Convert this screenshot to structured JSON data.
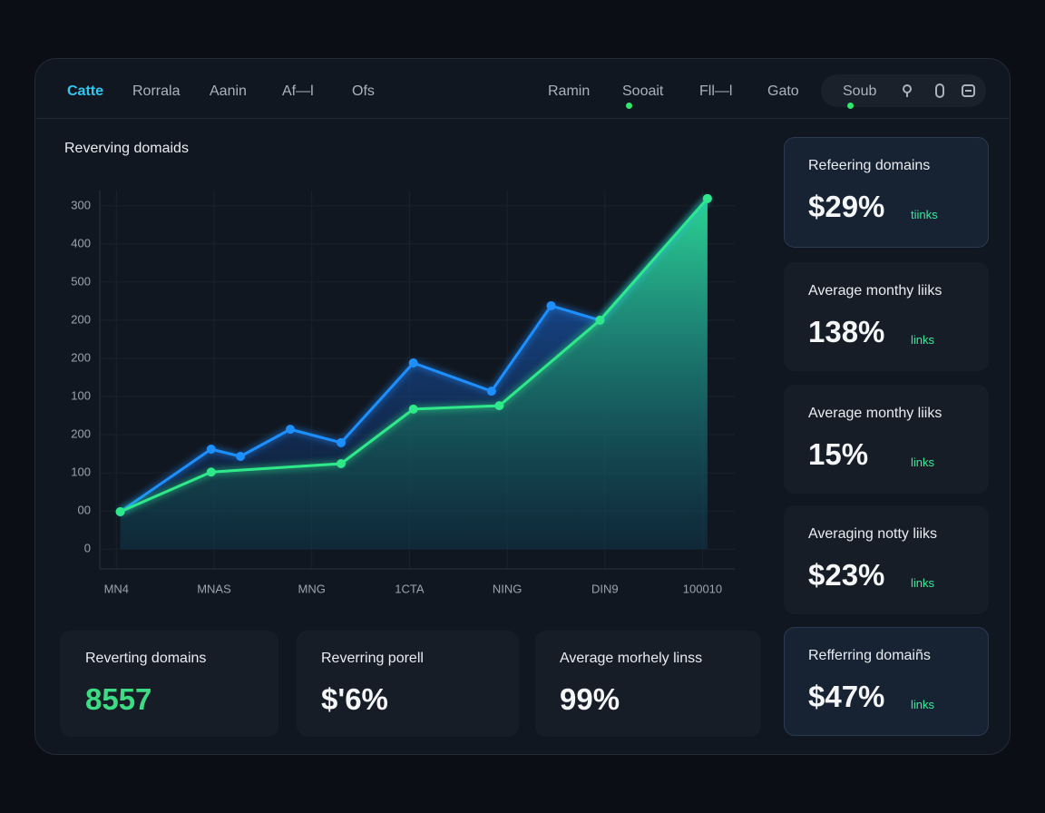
{
  "nav": {
    "tabs": [
      "Catte",
      "Rorrala",
      "Aanin",
      "Af—l",
      "Ofs",
      "Ramin",
      "Sooait",
      "Fll—l",
      "Gato"
    ],
    "pill": "Soub"
  },
  "chart_data": {
    "type": "area",
    "title": "Reverving domaids",
    "xlim": [
      -0.17,
      6.33
    ],
    "xticks": [
      {
        "value": 0,
        "label": "MN4"
      },
      {
        "value": 1,
        "label": "MNAS"
      },
      {
        "value": 2,
        "label": "MNG"
      },
      {
        "value": 3,
        "label": "1CTA"
      },
      {
        "value": 4,
        "label": "NING"
      },
      {
        "value": 5,
        "label": "DIN9"
      },
      {
        "value": 6,
        "label": "100010"
      }
    ],
    "ylim": [
      -52,
      940
    ],
    "yticks": [
      0,
      {
        "value": 100,
        "label": "00"
      },
      {
        "value": 200,
        "label": "100"
      },
      {
        "value": 300,
        "label": "200"
      },
      {
        "value": 400,
        "label": "100"
      },
      {
        "value": 500,
        "label": "200"
      },
      {
        "value": 600,
        "label": "200"
      },
      {
        "value": 700,
        "label": "500"
      },
      {
        "value": 800,
        "label": "400"
      },
      {
        "value": 900,
        "label": "300"
      }
    ],
    "grid": true,
    "series": [
      {
        "color": "#1e8fff",
        "x": [
          0.04,
          0.97,
          1.27,
          1.78,
          2.3,
          3.04,
          3.84,
          4.45,
          4.95,
          6.05
        ],
        "values": [
          98,
          262,
          243,
          314,
          279,
          488,
          414,
          638,
          600,
          919
        ]
      },
      {
        "color": "#2ee88a",
        "x": [
          0.04,
          0.97,
          2.3,
          3.04,
          3.92,
          4.95,
          6.05
        ],
        "values": [
          98,
          202,
          224,
          367,
          376,
          600,
          919
        ]
      }
    ]
  },
  "side_cards": [
    {
      "title": "Refeering domains",
      "value": "$29%",
      "note": "tiinks"
    },
    {
      "title": "Average monthy liiks",
      "value": "138%",
      "note": "links"
    },
    {
      "title": "Average monthy liiks",
      "value": "15%",
      "note": "links"
    },
    {
      "title": "Averaging notty liiks",
      "value": "$23%",
      "note": "links"
    },
    {
      "title": "Refferring domaiñs",
      "value": "$47%",
      "note": "links"
    }
  ],
  "bottom_cards": [
    {
      "title": "Reverting domains",
      "value": "8557"
    },
    {
      "title": "Reverring porell",
      "value": "$'6%"
    },
    {
      "title": "Average morhely linss",
      "value": "99%"
    }
  ]
}
